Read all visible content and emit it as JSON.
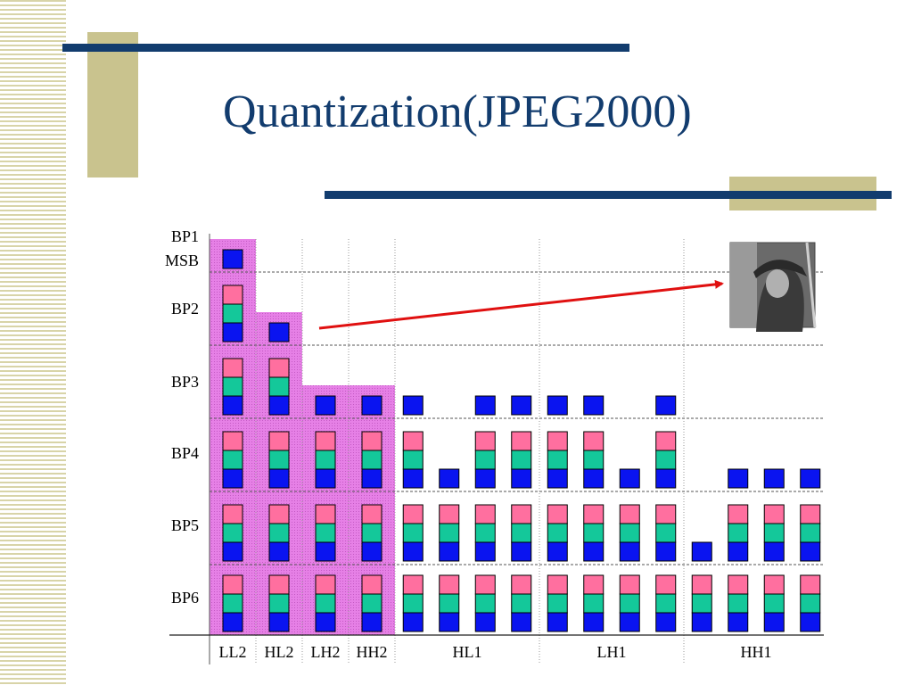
{
  "title": "Quantization(JPEG2000)",
  "colors": {
    "title": "#123c6e",
    "rule": "#123c6e",
    "accent": "#c9c38e",
    "highlight": "#e680e6",
    "pink": "#ff6f9f",
    "green": "#14c89a",
    "blue": "#0a14f0",
    "arrow": "#e01010"
  },
  "diagram": {
    "row_labels": [
      "BP1",
      "MSB",
      "BP2",
      "BP3",
      "BP4",
      "BP5",
      "BP6"
    ],
    "subbands": [
      {
        "label": "LL2",
        "columns": [
          {
            "top": "BP1"
          }
        ]
      },
      {
        "label": "HL2",
        "columns": [
          {
            "top": "BP2"
          }
        ]
      },
      {
        "label": "LH2",
        "columns": [
          {
            "top": "BP3"
          }
        ]
      },
      {
        "label": "HH2",
        "columns": [
          {
            "top": "BP3"
          }
        ]
      },
      {
        "label": "HL1",
        "columns": [
          {
            "top": "BP3"
          },
          {
            "top": "BP4"
          },
          {
            "top": "BP3"
          },
          {
            "top": "BP3"
          }
        ]
      },
      {
        "label": "LH1",
        "columns": [
          {
            "top": "BP3"
          },
          {
            "top": "BP3"
          },
          {
            "top": "BP4"
          },
          {
            "top": "BP3"
          }
        ]
      },
      {
        "label": "HH1",
        "columns": [
          {
            "top": "BP5"
          },
          {
            "top": "BP4"
          },
          {
            "top": "BP4"
          },
          {
            "top": "BP4"
          }
        ]
      }
    ],
    "image_icon": "lena-image"
  }
}
